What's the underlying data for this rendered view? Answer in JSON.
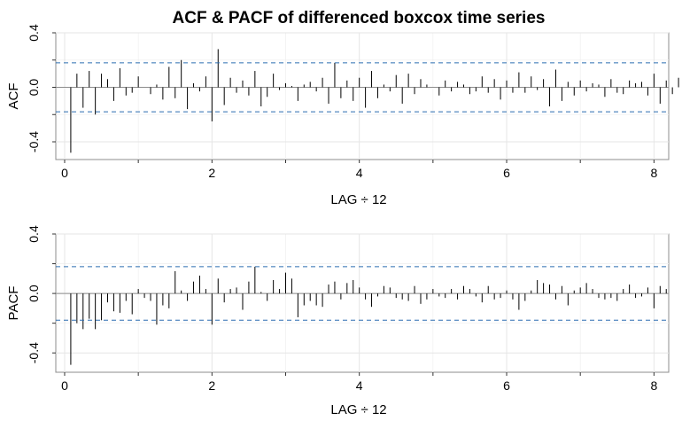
{
  "chart_data": [
    {
      "type": "bar",
      "title": "ACF & PACF of differenced boxcox time series",
      "ylabel": "ACF",
      "xlabel": "LAG ÷ 12",
      "xlim": [
        -0.12,
        8.2
      ],
      "ylim": [
        -0.53,
        0.4
      ],
      "x_ticks": [
        0,
        2,
        4,
        6,
        8
      ],
      "y_ticks": [
        -0.4,
        0.0,
        0.4
      ],
      "y_tick_labels": [
        "-0.4",
        "0.0",
        "0.4"
      ],
      "confidence_bound": 0.18,
      "grid": true,
      "lag_step": 0.0833333,
      "values": [
        -0.48,
        0.1,
        -0.15,
        0.12,
        -0.2,
        0.1,
        0.06,
        -0.1,
        0.14,
        -0.06,
        -0.04,
        0.08,
        0.0,
        -0.05,
        0.02,
        -0.09,
        0.15,
        -0.08,
        0.2,
        -0.16,
        0.03,
        -0.03,
        0.08,
        -0.25,
        0.28,
        -0.13,
        0.07,
        -0.04,
        0.05,
        -0.06,
        0.12,
        -0.14,
        -0.07,
        0.1,
        -0.02,
        0.03,
        0.01,
        -0.1,
        0.02,
        0.04,
        -0.03,
        0.07,
        -0.12,
        0.18,
        -0.08,
        0.05,
        -0.1,
        0.07,
        -0.15,
        0.12,
        -0.08,
        0.02,
        -0.03,
        0.09,
        -0.12,
        0.1,
        -0.05,
        0.06,
        0.02,
        0.0,
        -0.06,
        0.05,
        -0.03,
        0.04,
        0.02,
        -0.05,
        -0.03,
        0.08,
        -0.04,
        0.06,
        -0.09,
        0.05,
        -0.04,
        0.11,
        -0.04,
        0.08,
        -0.02,
        0.06,
        -0.14,
        0.13,
        -0.1,
        0.04,
        -0.06,
        0.05,
        -0.03,
        0.03,
        0.02,
        -0.07,
        0.06,
        -0.04,
        -0.05,
        0.05,
        0.03,
        0.04,
        -0.06,
        0.1,
        -0.12,
        0.05,
        -0.05,
        0.07,
        -0.03,
        0.02,
        0.01
      ]
    },
    {
      "type": "bar",
      "title": "",
      "ylabel": "PACF",
      "xlabel": "LAG ÷ 12",
      "xlim": [
        -0.12,
        8.2
      ],
      "ylim": [
        -0.53,
        0.4
      ],
      "x_ticks": [
        0,
        2,
        4,
        6,
        8
      ],
      "y_ticks": [
        -0.4,
        0.0,
        0.4
      ],
      "y_tick_labels": [
        "-0.4",
        "0.0",
        "0.4"
      ],
      "confidence_bound": 0.18,
      "grid": true,
      "lag_step": 0.0833333,
      "values": [
        -0.48,
        -0.2,
        -0.24,
        -0.17,
        -0.24,
        -0.18,
        -0.06,
        -0.12,
        -0.13,
        -0.05,
        -0.14,
        0.03,
        -0.03,
        -0.05,
        -0.21,
        -0.08,
        -0.1,
        0.15,
        0.02,
        -0.05,
        0.08,
        0.12,
        0.03,
        -0.21,
        0.1,
        -0.06,
        0.03,
        0.04,
        -0.11,
        0.08,
        0.18,
        0.01,
        -0.05,
        0.09,
        0.03,
        0.14,
        0.1,
        -0.16,
        -0.08,
        -0.05,
        -0.08,
        -0.09,
        0.06,
        0.08,
        -0.04,
        0.07,
        0.09,
        0.04,
        -0.04,
        -0.09,
        -0.02,
        0.05,
        0.04,
        -0.03,
        -0.04,
        -0.05,
        0.05,
        -0.07,
        -0.04,
        0.03,
        -0.02,
        -0.03,
        0.03,
        -0.04,
        0.05,
        0.03,
        -0.02,
        -0.06,
        0.05,
        -0.04,
        -0.03,
        0.02,
        -0.04,
        -0.11,
        -0.05,
        0.02,
        0.09,
        0.07,
        0.06,
        -0.04,
        0.05,
        -0.08,
        0.02,
        0.04,
        0.07,
        0.03,
        -0.03,
        -0.04,
        -0.03,
        -0.05,
        0.03,
        0.06,
        -0.03,
        -0.02,
        0.04,
        -0.1,
        0.05,
        0.03
      ]
    }
  ]
}
